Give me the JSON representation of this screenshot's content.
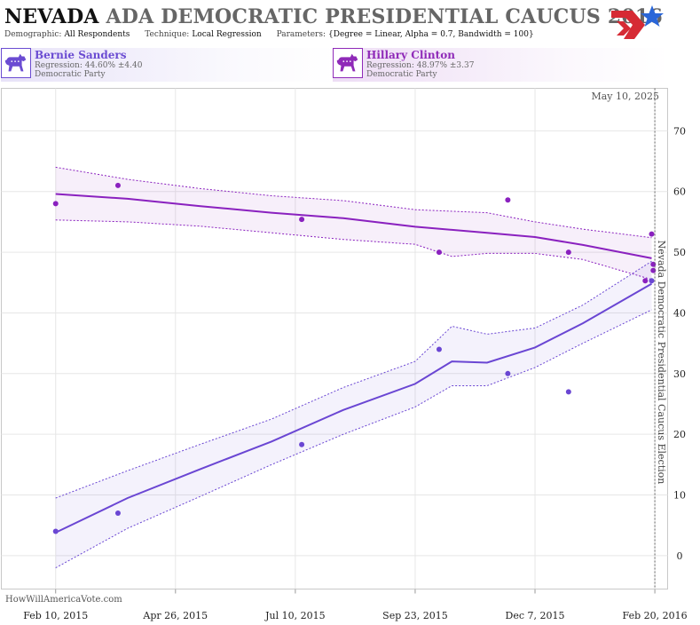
{
  "header": {
    "title_state": "NEVADA",
    "title_rest": "ADA DEMOCRATIC PRESIDENTIAL CAUCUS 2016",
    "params": [
      {
        "label": "Demographic:",
        "value": "All Respondents"
      },
      {
        "label": "Technique:",
        "value": "Local Regression"
      },
      {
        "label": "Parameters:",
        "value": "{Degree = Linear, Alpha = 0.7, Bandwidth = 100}"
      }
    ]
  },
  "candidates": [
    {
      "name": "Bernie Sanders",
      "regression": "Regression: 44.60% ±4.40",
      "party": "Democratic Party",
      "color": "#6b4cd2"
    },
    {
      "name": "Hillary Clinton",
      "regression": "Regression: 48.97% ±3.37",
      "party": "Democratic Party",
      "color": "#8f2ab8"
    }
  ],
  "current_date": "May 10, 2025",
  "election_label": "Nevada Democratic Presidential Caucus Election",
  "credit": "HowWillAmericaVote.com",
  "chart_data": {
    "type": "line",
    "x_ticks": [
      "Feb 10, 2015",
      "Apr 26, 2015",
      "Jul 10, 2015",
      "Sep 23, 2015",
      "Dec 7, 2015",
      "Feb 20, 2016"
    ],
    "x_range": [
      "2015-01-07",
      "2016-02-28"
    ],
    "y_ticks": [
      0,
      10,
      20,
      30,
      40,
      50,
      60,
      70
    ],
    "ylim": [
      -5.5,
      77
    ],
    "election_date": "2016-02-20",
    "grid": true,
    "series": [
      {
        "name": "Hillary Clinton",
        "color": "#8a21bf",
        "points": [
          [
            "2015-02-10",
            58.0
          ],
          [
            "2015-03-21",
            61.0
          ],
          [
            "2015-07-14",
            55.4
          ],
          [
            "2015-10-08",
            50.0
          ],
          [
            "2015-11-20",
            58.6
          ],
          [
            "2015-12-28",
            50.0
          ],
          [
            "2016-02-14",
            45.3
          ],
          [
            "2016-02-18",
            53.0
          ],
          [
            "2016-02-19",
            48.0
          ],
          [
            "2016-02-19",
            47.0
          ]
        ],
        "trend": [
          [
            "2015-02-10",
            59.6
          ],
          [
            "2015-03-27",
            58.8
          ],
          [
            "2015-05-11",
            57.6
          ],
          [
            "2015-06-25",
            56.5
          ],
          [
            "2015-08-09",
            55.6
          ],
          [
            "2015-09-23",
            54.2
          ],
          [
            "2015-11-07",
            53.2
          ],
          [
            "2015-12-07",
            52.5
          ],
          [
            "2016-01-06",
            51.2
          ],
          [
            "2016-02-18",
            49.0
          ]
        ],
        "upper": [
          [
            "2015-02-10",
            64.0
          ],
          [
            "2015-03-27",
            62.0
          ],
          [
            "2015-05-11",
            60.5
          ],
          [
            "2015-06-25",
            59.3
          ],
          [
            "2015-08-09",
            58.5
          ],
          [
            "2015-09-23",
            57.0
          ],
          [
            "2015-11-07",
            56.5
          ],
          [
            "2015-12-07",
            55.0
          ],
          [
            "2016-01-06",
            53.8
          ],
          [
            "2016-02-18",
            52.4
          ]
        ],
        "lower": [
          [
            "2015-02-10",
            55.3
          ],
          [
            "2015-03-27",
            55.0
          ],
          [
            "2015-05-11",
            54.3
          ],
          [
            "2015-06-25",
            53.2
          ],
          [
            "2015-08-09",
            52.1
          ],
          [
            "2015-09-23",
            51.3
          ],
          [
            "2015-10-16",
            49.3
          ],
          [
            "2015-11-07",
            49.8
          ],
          [
            "2015-12-07",
            49.8
          ],
          [
            "2016-01-06",
            48.8
          ],
          [
            "2016-02-18",
            45.5
          ]
        ]
      },
      {
        "name": "Bernie Sanders",
        "color": "#6a46d3",
        "points": [
          [
            "2015-02-10",
            4.0
          ],
          [
            "2015-03-21",
            7.0
          ],
          [
            "2015-07-14",
            18.3
          ],
          [
            "2015-10-08",
            34.0
          ],
          [
            "2015-11-20",
            30.0
          ],
          [
            "2015-12-28",
            27.0
          ],
          [
            "2016-02-18",
            45.3
          ]
        ],
        "trend": [
          [
            "2015-02-10",
            3.8
          ],
          [
            "2015-03-27",
            9.5
          ],
          [
            "2015-05-11",
            14.2
          ],
          [
            "2015-06-25",
            18.8
          ],
          [
            "2015-08-09",
            24.0
          ],
          [
            "2015-09-23",
            28.3
          ],
          [
            "2015-10-16",
            32.0
          ],
          [
            "2015-11-07",
            31.8
          ],
          [
            "2015-12-07",
            34.3
          ],
          [
            "2016-01-06",
            38.3
          ],
          [
            "2016-02-18",
            44.8
          ]
        ],
        "upper": [
          [
            "2015-02-10",
            9.5
          ],
          [
            "2015-03-27",
            14.0
          ],
          [
            "2015-05-11",
            18.3
          ],
          [
            "2015-06-25",
            22.5
          ],
          [
            "2015-08-09",
            27.7
          ],
          [
            "2015-09-23",
            32.0
          ],
          [
            "2015-10-16",
            37.8
          ],
          [
            "2015-11-07",
            36.5
          ],
          [
            "2015-12-07",
            37.5
          ],
          [
            "2016-01-06",
            41.3
          ],
          [
            "2016-02-18",
            48.5
          ]
        ],
        "lower": [
          [
            "2015-02-10",
            -2.0
          ],
          [
            "2015-03-27",
            4.5
          ],
          [
            "2015-05-11",
            9.7
          ],
          [
            "2015-06-25",
            15.0
          ],
          [
            "2015-08-09",
            20.0
          ],
          [
            "2015-09-23",
            24.5
          ],
          [
            "2015-10-16",
            28.0
          ],
          [
            "2015-11-07",
            28.0
          ],
          [
            "2015-12-07",
            31.0
          ],
          [
            "2016-01-06",
            35.0
          ],
          [
            "2016-02-18",
            40.5
          ]
        ]
      }
    ]
  }
}
